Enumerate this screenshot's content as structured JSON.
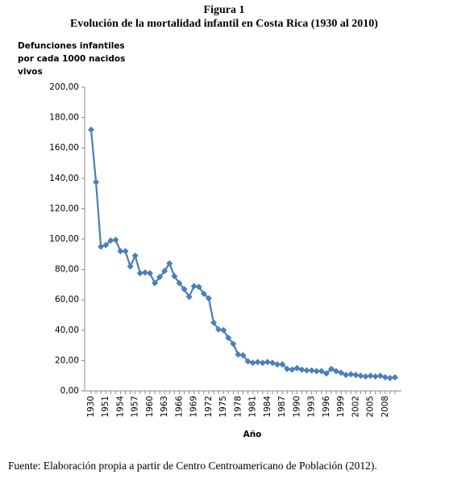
{
  "chart_data": {
    "type": "line",
    "title": "Figura 1",
    "subtitle": "Evolución de la mortalidad infantil en Costa Rica (1930 al 2010)",
    "y_label": [
      "Defunciones infantiles",
      "por cada 1000 nacidos",
      "vivos"
    ],
    "x_label": "Año",
    "source": "Fuente: Elaboración propia a partir de Centro Centroamericano de Población (2012).",
    "categories": [
      "1930",
      null,
      null,
      "1951",
      null,
      null,
      "1954",
      null,
      null,
      "1957",
      null,
      null,
      "1960",
      null,
      null,
      "1963",
      null,
      null,
      "1966",
      null,
      null,
      "1969",
      null,
      null,
      "1972",
      null,
      null,
      "1975",
      null,
      null,
      "1978",
      null,
      null,
      "1981",
      null,
      null,
      "1984",
      null,
      null,
      "1987",
      null,
      null,
      "1990",
      null,
      null,
      "1993",
      null,
      null,
      "1996",
      null,
      null,
      "1999",
      null,
      null,
      "2002",
      null,
      null,
      "2005",
      null,
      null,
      "2008",
      null,
      null
    ],
    "values": [
      172,
      137.5,
      95,
      96,
      99,
      99.5,
      92,
      92,
      82,
      89,
      77.5,
      78,
      77.5,
      71,
      75,
      79,
      84,
      75.5,
      71,
      67,
      62,
      69,
      68.5,
      64,
      61,
      45,
      40.5,
      40,
      35,
      31,
      24,
      23.5,
      19.5,
      18.5,
      19,
      18.5,
      19,
      18.5,
      17.5,
      17.5,
      14.5,
      14,
      15,
      14,
      13.5,
      13.5,
      13,
      13,
      11.5,
      14.5,
      13,
      12,
      10.5,
      11,
      10.5,
      10,
      9.5,
      10,
      9.5,
      10,
      9,
      8.5,
      9
    ],
    "color": "#4a7ebb",
    "ylim": [
      0,
      200
    ],
    "yticks": [
      {
        "value": 0,
        "label": "0,00"
      },
      {
        "value": 20,
        "label": "20,00"
      },
      {
        "value": 40,
        "label": "40,00"
      },
      {
        "value": 60,
        "label": "60,00"
      },
      {
        "value": 80,
        "label": "80,00"
      },
      {
        "value": 100,
        "label": "100,00"
      },
      {
        "value": 120,
        "label": "120,00"
      },
      {
        "value": 140,
        "label": "140,00"
      },
      {
        "value": 160,
        "label": "160,00"
      },
      {
        "value": 180,
        "label": "180,00"
      },
      {
        "value": 200,
        "label": "200,00"
      }
    ],
    "grid": false
  }
}
